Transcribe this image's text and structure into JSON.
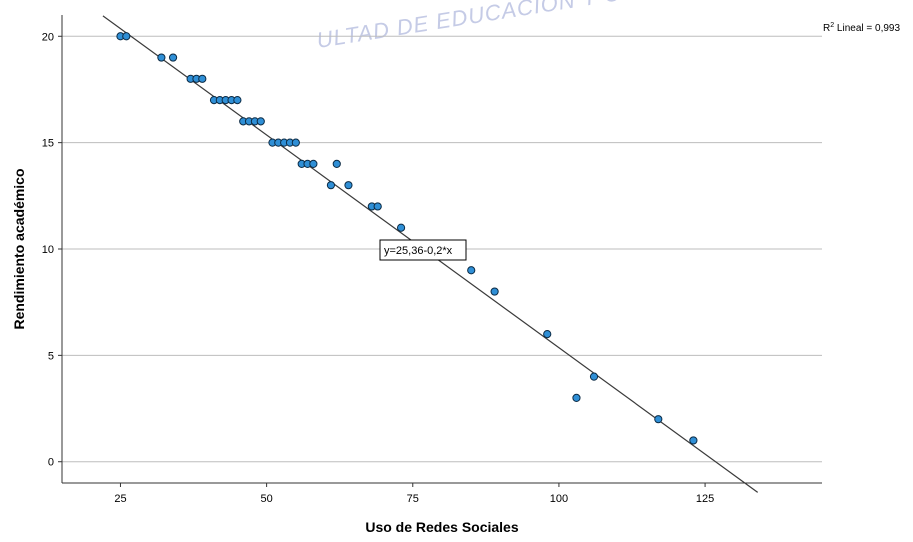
{
  "chart_data": {
    "type": "scatter",
    "xlabel": "Uso de Redes Sociales",
    "ylabel": "Rendimiento académico",
    "xlim": [
      15,
      145
    ],
    "ylim": [
      -1,
      21
    ],
    "xticks": [
      25,
      50,
      75,
      100,
      125
    ],
    "yticks": [
      0,
      5,
      10,
      15,
      20
    ],
    "x_tick_labels": [
      "25",
      "50",
      "75",
      "100",
      "125"
    ],
    "y_tick_labels": [
      "0",
      "5",
      "10",
      "15",
      "20"
    ],
    "grid": "horizontal",
    "points": [
      [
        25,
        20
      ],
      [
        26,
        20
      ],
      [
        32,
        19
      ],
      [
        34,
        19
      ],
      [
        37,
        18
      ],
      [
        38,
        18
      ],
      [
        39,
        18
      ],
      [
        41,
        17
      ],
      [
        42,
        17
      ],
      [
        43,
        17
      ],
      [
        44,
        17
      ],
      [
        45,
        17
      ],
      [
        46,
        16
      ],
      [
        47,
        16
      ],
      [
        48,
        16
      ],
      [
        49,
        16
      ],
      [
        51,
        15
      ],
      [
        52,
        15
      ],
      [
        53,
        15
      ],
      [
        54,
        15
      ],
      [
        55,
        15
      ],
      [
        56,
        14
      ],
      [
        57,
        14
      ],
      [
        58,
        14
      ],
      [
        62,
        14
      ],
      [
        61,
        13
      ],
      [
        64,
        13
      ],
      [
        68,
        12
      ],
      [
        69,
        12
      ],
      [
        73,
        11
      ],
      [
        85,
        9
      ],
      [
        89,
        8
      ],
      [
        98,
        6
      ],
      [
        106,
        4
      ],
      [
        103,
        3
      ],
      [
        117,
        2
      ],
      [
        123,
        1
      ]
    ],
    "fit_line": {
      "intercept": 25.36,
      "slope": -0.2,
      "x_range": [
        22,
        134
      ]
    },
    "equation_label": "y=25,36-0,2*x",
    "r2_prefix": "R",
    "r2_superscript": "2",
    "r2_text": " Lineal = 0,993",
    "colors": {
      "point_fill": "#2f8fd6",
      "point_stroke": "#0b2a44",
      "line": "#3a3a3a",
      "grid": "#bdbdbd",
      "axis": "#333333"
    }
  },
  "watermark": {
    "text": "ULTAD DE EDUCACIÓN Y C"
  }
}
